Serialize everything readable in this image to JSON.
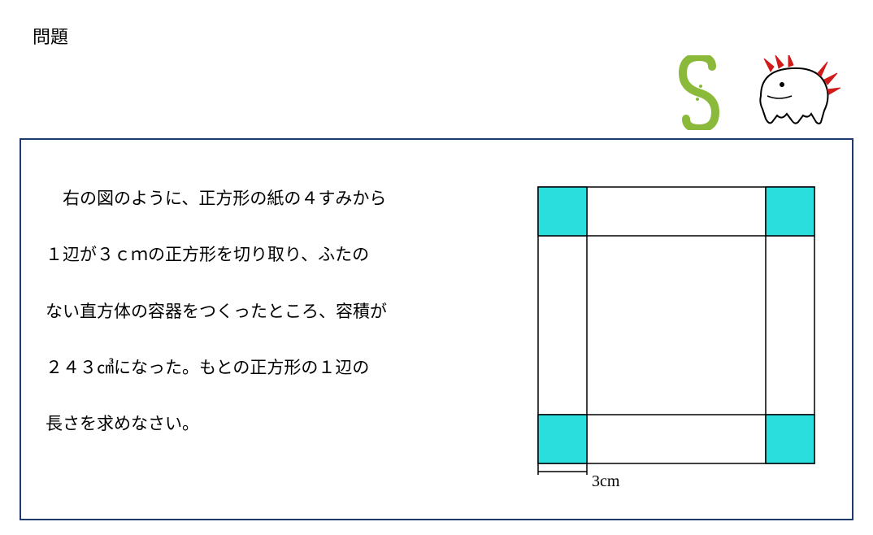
{
  "title": "問題",
  "problem": {
    "line1": "　右の図のように、正方形の紙の４すみから",
    "line2": "１辺が３ｃｍの正方形を切り取り、ふたの",
    "line3": "ない直方体の容器をつくったところ、容積が",
    "line4": "２４３㎤になった。もとの正方形の１辺の",
    "line5": "長さを求めなさい。"
  },
  "diagram": {
    "outer_size": 340,
    "corner_size": 60,
    "corner_color": "#2adede",
    "stroke_color": "#000000",
    "stroke_width": 1.5,
    "background": "#ffffff",
    "dimension_label": "3cm"
  },
  "decor": {
    "s_color": "#8bba3a",
    "creature_outline": "#000000",
    "creature_crest": "#d11a1a",
    "creature_eye": "#000000"
  },
  "colors": {
    "box_border": "#1f3a6e",
    "text": "#000000",
    "page_bg": "#ffffff"
  }
}
